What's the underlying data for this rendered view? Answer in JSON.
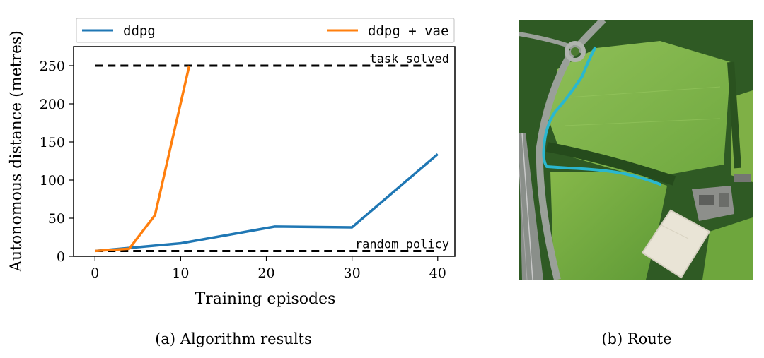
{
  "chart_data": {
    "type": "line",
    "xlabel": "Training episodes",
    "ylabel": "Autonomous distance (metres)",
    "xlim": [
      -2.5,
      42
    ],
    "ylim": [
      0,
      275
    ],
    "xticks": [
      0,
      10,
      20,
      30,
      40
    ],
    "yticks": [
      0,
      50,
      100,
      150,
      200,
      250
    ],
    "legend_position": "top (outside, above axes)",
    "series": [
      {
        "name": "ddpg",
        "color": "#1f77b4",
        "x": [
          0,
          4,
          10,
          21,
          30,
          40
        ],
        "y": [
          7,
          11,
          17,
          39,
          38,
          134
        ]
      },
      {
        "name": "ddpg + vae",
        "color": "#ff7f0e",
        "x": [
          0,
          4,
          7,
          11
        ],
        "y": [
          7,
          10,
          54,
          250
        ]
      }
    ],
    "reference_lines": [
      {
        "label": "task solved",
        "y": 250,
        "x_from": 0,
        "x_to": 40,
        "style": "dashed",
        "color": "#000000"
      },
      {
        "label": "random policy",
        "y": 7,
        "x_from": 0,
        "x_to": 40,
        "style": "dashed",
        "color": "#000000"
      }
    ]
  },
  "captions": {
    "left": "(a) Algorithm results",
    "right": "(b) Route"
  },
  "route_image": {
    "route_color": "#2ab7cf",
    "field_color": "#7fb046",
    "road_color": "#8a8f8a"
  }
}
